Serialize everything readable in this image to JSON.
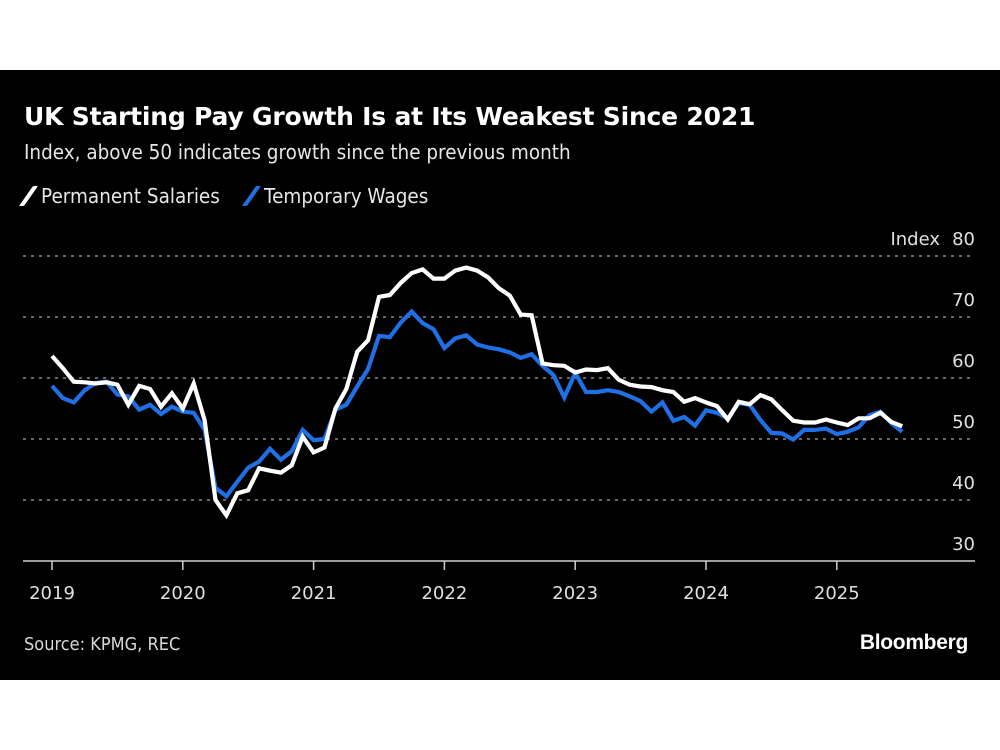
{
  "header": {
    "title": "UK Starting Pay Growth Is at Its Weakest Since 2021",
    "subtitle": "Index, above 50 indicates growth since the previous month"
  },
  "footer": {
    "source": "Source: KPMG, REC",
    "brand": "Bloomberg"
  },
  "colors": {
    "background": "#000000",
    "permanent": "#ffffff",
    "temporary": "#1f6fe5",
    "grid": "#8a8a8a"
  },
  "chart_data": {
    "type": "line",
    "title": "UK Starting Pay Growth Is at Its Weakest Since 2021",
    "subtitle": "Index, above 50 indicates growth since the previous month",
    "xlabel": "",
    "ylabel": "Index",
    "ylim": [
      30,
      80
    ],
    "yticks": [
      30,
      40,
      50,
      60,
      70,
      80
    ],
    "y_unit_label": "Index",
    "grid": true,
    "legend_position": "top-left",
    "x_start": "2019-01",
    "x_frequency": "monthly",
    "x_range_years": [
      2019,
      2026
    ],
    "xtick_labels": [
      "2019",
      "2020",
      "2021",
      "2022",
      "2023",
      "2024",
      "2025"
    ],
    "series": [
      {
        "name": "Permanent Salaries",
        "color": "#ffffff",
        "values": [
          63.6,
          61.6,
          59.4,
          59.3,
          59.1,
          59.3,
          58.9,
          55.6,
          58.7,
          58.2,
          55.3,
          57.5,
          55.0,
          59.1,
          53.1,
          40.0,
          37.5,
          41.1,
          41.6,
          45.2,
          44.8,
          44.5,
          45.7,
          50.4,
          47.8,
          48.6,
          55.0,
          58.2,
          64.3,
          66.2,
          73.3,
          73.6,
          75.6,
          77.2,
          77.8,
          76.3,
          76.3,
          77.6,
          78.1,
          77.6,
          76.5,
          74.7,
          73.5,
          70.4,
          70.3,
          62.4,
          62.1,
          62.0,
          60.9,
          61.4,
          61.3,
          61.6,
          59.7,
          58.9,
          58.6,
          58.5,
          58.0,
          57.7,
          56.1,
          56.7,
          56.0,
          55.4,
          53.2,
          56.1,
          55.7,
          57.2,
          56.5,
          54.7,
          53.0,
          52.7,
          52.7,
          53.2,
          52.7,
          52.3,
          53.4,
          53.4,
          54.3,
          52.8,
          52.1
        ]
      },
      {
        "name": "Temporary Wages",
        "color": "#1f6fe5",
        "values": [
          58.7,
          56.7,
          56.0,
          58.0,
          59.2,
          59.4,
          57.3,
          57.0,
          54.8,
          55.6,
          54.1,
          55.3,
          54.5,
          54.3,
          51.5,
          42.0,
          40.6,
          43.0,
          45.3,
          46.3,
          48.4,
          46.6,
          48.0,
          51.5,
          49.8,
          50.0,
          54.8,
          55.6,
          58.6,
          61.5,
          66.9,
          66.7,
          69.1,
          70.9,
          69.0,
          68.0,
          64.9,
          66.5,
          67.0,
          65.5,
          65.0,
          64.7,
          64.2,
          63.3,
          63.9,
          62.0,
          60.5,
          56.8,
          60.8,
          57.7,
          57.7,
          58.0,
          57.7,
          57.0,
          56.2,
          54.5,
          56.0,
          53.0,
          53.6,
          52.2,
          54.7,
          54.3,
          53.4,
          55.9,
          55.6,
          53.1,
          51.0,
          50.9,
          49.9,
          51.5,
          51.5,
          51.7,
          50.8,
          51.2,
          51.9,
          53.9,
          54.5,
          52.6,
          51.2
        ]
      }
    ]
  }
}
